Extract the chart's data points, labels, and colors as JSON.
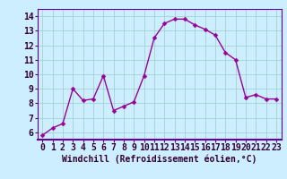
{
  "x": [
    0,
    1,
    2,
    3,
    4,
    5,
    6,
    7,
    8,
    9,
    10,
    11,
    12,
    13,
    14,
    15,
    16,
    17,
    18,
    19,
    20,
    21,
    22,
    23
  ],
  "y": [
    5.8,
    6.3,
    6.6,
    9.0,
    8.2,
    8.3,
    9.9,
    7.5,
    7.8,
    8.1,
    9.9,
    12.5,
    13.5,
    13.8,
    13.8,
    13.4,
    13.1,
    12.7,
    11.5,
    11.0,
    8.4,
    8.6,
    8.3,
    8.3
  ],
  "line_color": "#990099",
  "marker_color": "#990099",
  "bg_color": "#cceeff",
  "grid_color": "#99cccc",
  "xlabel": "Windchill (Refroidissement éolien,°C)",
  "xlim": [
    -0.5,
    23.5
  ],
  "ylim": [
    5.5,
    14.5
  ],
  "yticks": [
    6,
    7,
    8,
    9,
    10,
    11,
    12,
    13,
    14
  ],
  "xticks": [
    0,
    1,
    2,
    3,
    4,
    5,
    6,
    7,
    8,
    9,
    10,
    11,
    12,
    13,
    14,
    15,
    16,
    17,
    18,
    19,
    20,
    21,
    22,
    23
  ],
  "xlabel_fontsize": 7,
  "tick_fontsize": 7,
  "line_width": 1.0,
  "marker_size": 2.5
}
